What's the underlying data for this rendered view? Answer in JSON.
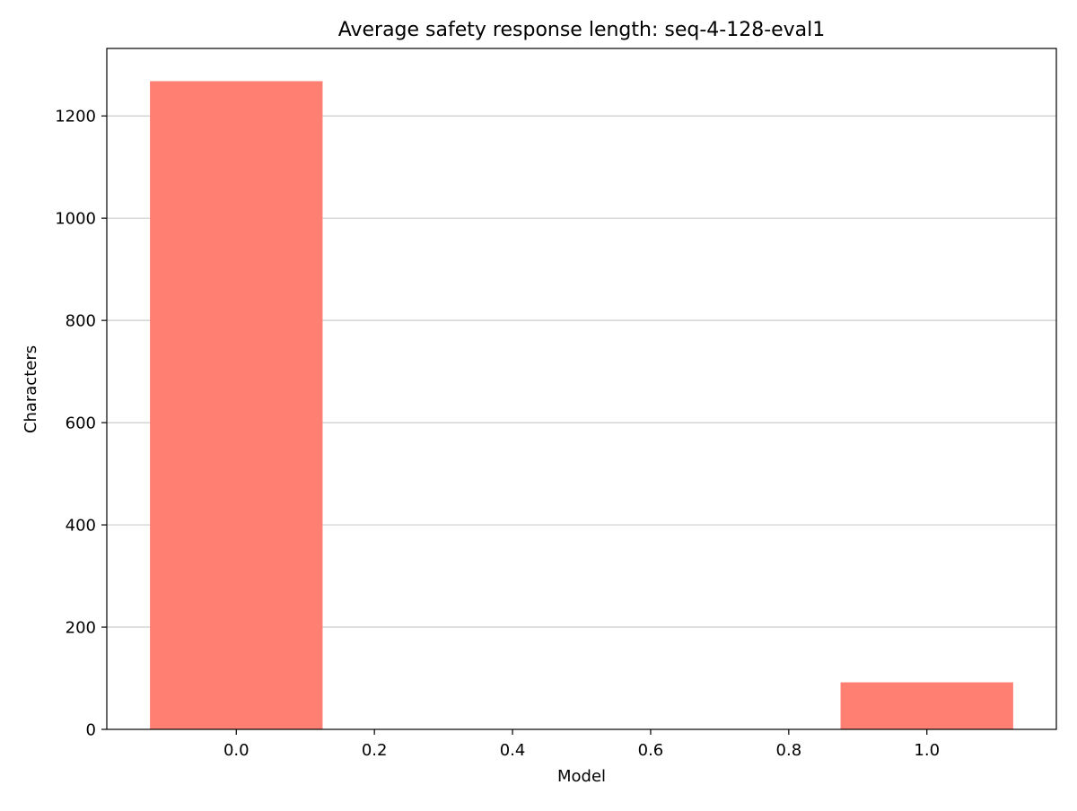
{
  "chart_data": {
    "type": "bar",
    "title": "Average safety response length: seq-4-128-eval1",
    "xlabel": "Model",
    "ylabel": "Characters",
    "x": [
      0.0,
      1.0
    ],
    "values": [
      1268,
      92
    ],
    "bar_width": 0.25,
    "bar_color": "#ff7f73",
    "xlim": [
      -0.1875,
      1.1875
    ],
    "ylim": [
      0,
      1332
    ],
    "xticks": [
      0.0,
      0.2,
      0.4,
      0.6,
      0.8,
      1.0
    ],
    "xtick_labels": [
      "0.0",
      "0.2",
      "0.4",
      "0.6",
      "0.8",
      "1.0"
    ],
    "yticks": [
      0,
      200,
      400,
      600,
      800,
      1000,
      1200
    ],
    "ytick_labels": [
      "0",
      "200",
      "400",
      "600",
      "800",
      "1000",
      "1200"
    ],
    "grid": "y-major",
    "grid_color": "#cccccc",
    "legend": "none"
  }
}
